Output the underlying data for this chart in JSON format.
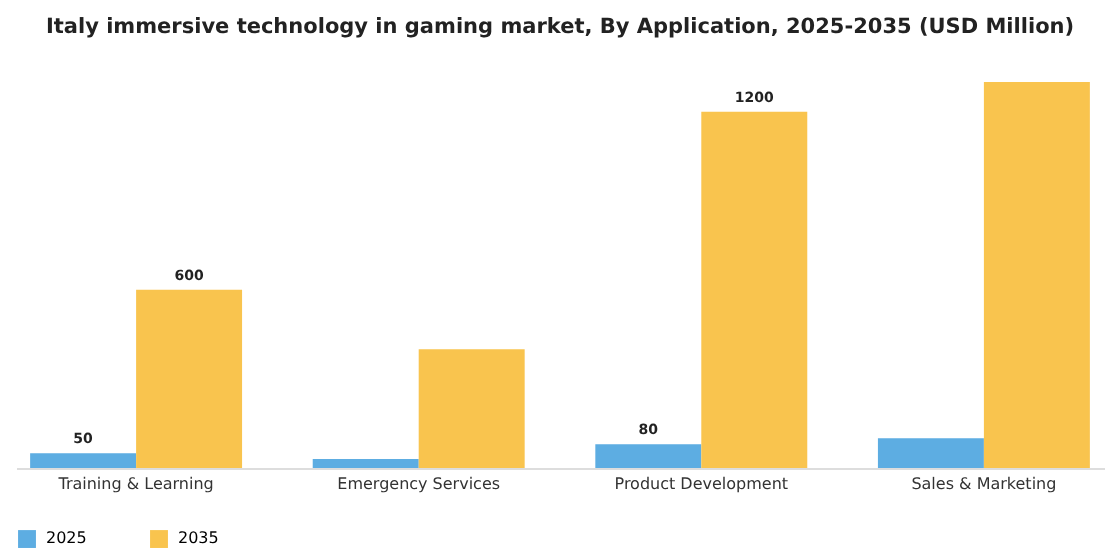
{
  "chart_data": {
    "type": "bar",
    "title": "Italy immersive technology in gaming market, By Application, 2025-2035 (USD Million)",
    "categories": [
      "Training & Learning",
      "Emergency Services",
      "Product Development",
      "Sales & Marketing"
    ],
    "series": [
      {
        "name": "2025",
        "color": "#5dade2",
        "values": [
          50,
          30,
          80,
          100
        ],
        "value_labels": [
          "50",
          null,
          "80",
          null
        ]
      },
      {
        "name": "2035",
        "color": "#f9c44e",
        "values": [
          600,
          400,
          1200,
          1300
        ],
        "value_labels": [
          "600",
          null,
          "1200",
          null
        ]
      }
    ],
    "legend": "bottom",
    "grid": false
  }
}
